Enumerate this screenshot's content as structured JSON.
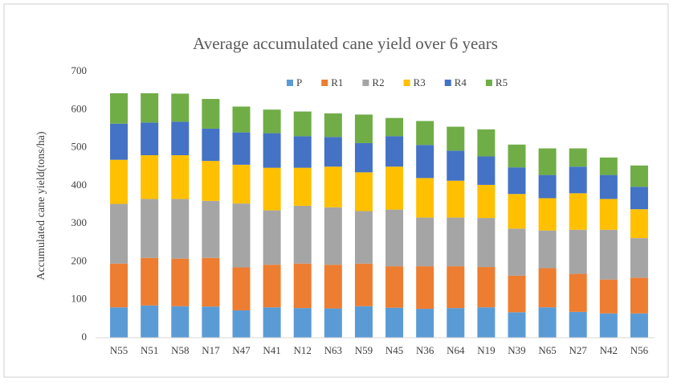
{
  "chart_data": {
    "type": "stacked_bar",
    "title": "Average accumulated cane yield over 6 years",
    "y_label": "Accumulated cane yield(tons/ha)",
    "categories": [
      "N55",
      "N51",
      "N58",
      "N17",
      "N47",
      "N41",
      "N12",
      "N63",
      "N59",
      "N45",
      "N36",
      "N64",
      "N19",
      "N39",
      "N65",
      "N27",
      "N42",
      "N56"
    ],
    "series": [
      {
        "name": "P",
        "color": "#5b9bd5",
        "values": [
          80,
          85,
          83,
          82,
          72,
          80,
          78,
          77,
          83,
          79,
          76,
          78,
          80,
          67,
          80,
          68,
          64,
          64
        ]
      },
      {
        "name": "R1",
        "color": "#ed7d31",
        "values": [
          115,
          125,
          125,
          128,
          113,
          112,
          117,
          115,
          112,
          109,
          112,
          110,
          106,
          96,
          103,
          100,
          89,
          94
        ]
      },
      {
        "name": "R2",
        "color": "#a5a5a5",
        "values": [
          157,
          155,
          157,
          150,
          168,
          143,
          152,
          151,
          138,
          149,
          128,
          128,
          129,
          124,
          99,
          116,
          131,
          104
        ]
      },
      {
        "name": "R3",
        "color": "#ffc000",
        "values": [
          116,
          115,
          115,
          105,
          102,
          112,
          100,
          107,
          102,
          113,
          104,
          97,
          87,
          91,
          85,
          96,
          81,
          76
        ]
      },
      {
        "name": "R4",
        "color": "#4472c4",
        "values": [
          95,
          86,
          88,
          85,
          85,
          91,
          83,
          78,
          77,
          80,
          87,
          79,
          75,
          70,
          61,
          70,
          63,
          59
        ]
      },
      {
        "name": "R5",
        "color": "#70ad47",
        "values": [
          80,
          77,
          74,
          78,
          68,
          62,
          65,
          62,
          75,
          48,
          63,
          63,
          71,
          60,
          70,
          48,
          46,
          56
        ]
      }
    ],
    "ylim": [
      0,
      700
    ],
    "yticks": [
      0,
      100,
      200,
      300,
      400,
      500,
      600,
      700
    ],
    "grid": false,
    "legend": "top"
  }
}
